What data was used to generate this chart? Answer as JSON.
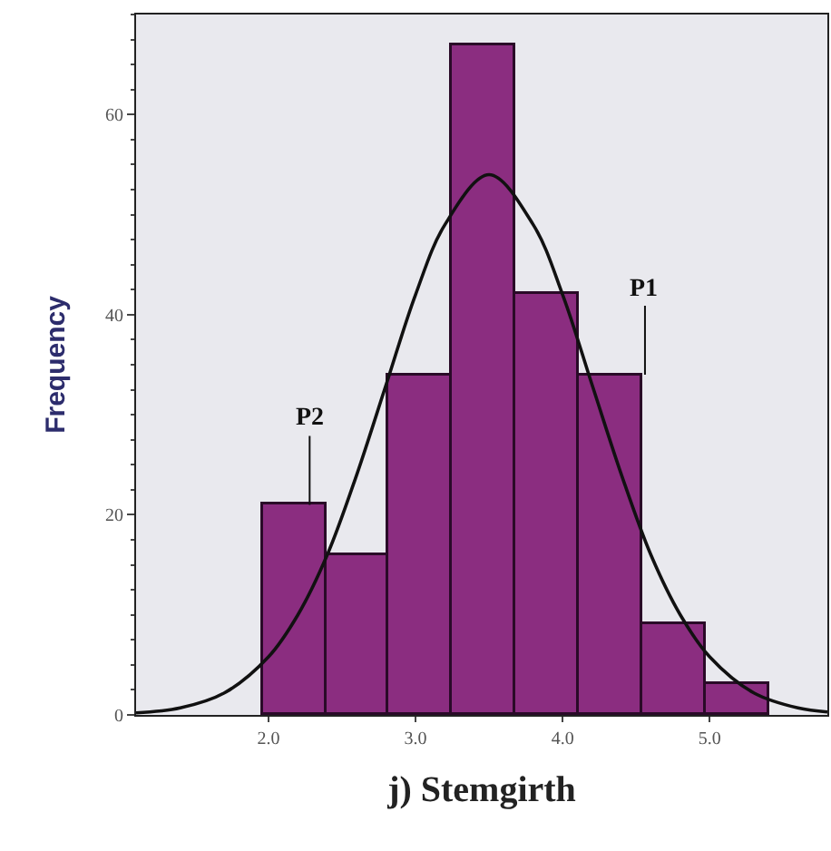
{
  "chart_data": {
    "type": "histogram",
    "xlabel": "j) Stemgirth",
    "ylabel": "Frequency",
    "bins": [
      1.96,
      2.39,
      2.82,
      3.25,
      3.68,
      4.11,
      4.54,
      4.97,
      5.4
    ],
    "values": [
      21,
      16,
      34,
      67,
      42,
      34,
      9,
      3
    ],
    "color": "#8b2d80",
    "series": [
      {
        "type": "line",
        "color": "#111111",
        "x": [
          1.1,
          1.4,
          1.7,
          2.0,
          2.2,
          2.4,
          2.6,
          2.8,
          3.0,
          3.2,
          3.5,
          3.8,
          4.0,
          4.2,
          4.4,
          4.6,
          4.8,
          5.0,
          5.3,
          5.6,
          5.8
        ],
        "values": [
          0.2,
          0.7,
          2.2,
          5.8,
          10,
          16,
          24,
          33,
          42,
          49,
          54,
          49,
          42,
          33,
          24,
          16,
          10,
          5.8,
          2.2,
          0.7,
          0.3
        ]
      }
    ],
    "annotations": [
      {
        "text": "P2",
        "x": 2.28,
        "y": 21
      },
      {
        "text": "P1",
        "x": 4.56,
        "y": 34
      }
    ],
    "xlim": [
      1.1,
      5.8
    ],
    "ylim": [
      0,
      70
    ],
    "xticks": [
      {
        "value": 2,
        "label": "2.0"
      },
      {
        "value": 3,
        "label": "3.0"
      },
      {
        "value": 4,
        "label": "4.0"
      },
      {
        "value": 5,
        "label": "5.0"
      }
    ],
    "yticks": [
      0,
      20,
      40,
      60
    ]
  }
}
